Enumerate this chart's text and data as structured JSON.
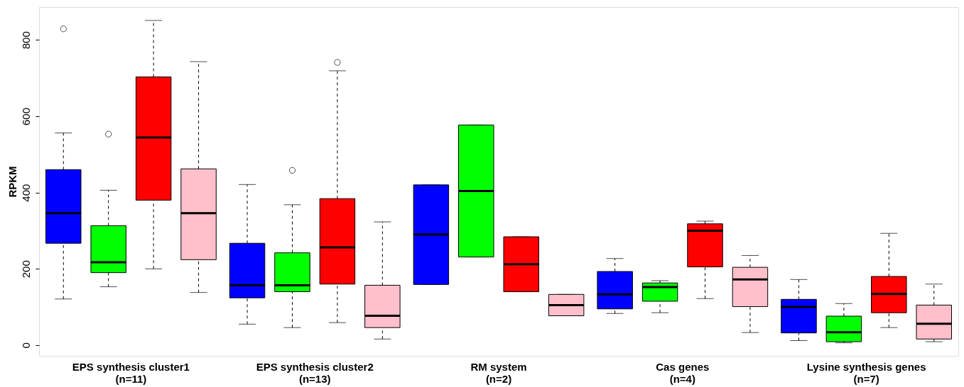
{
  "chart_data": {
    "type": "box",
    "ylabel": "RPKM",
    "ylim": [
      -28,
      886
    ],
    "yticks": [
      0,
      200,
      400,
      600,
      800
    ],
    "grid": false,
    "categories": [
      "EPS synthesis cluster1\n(n=11)",
      "EPS synthesis cluster2\n(n=13)",
      "RM system\n(n=2)",
      "Cas genes\n(n=4)",
      "Lysine synthesis genes\n(n=7)"
    ],
    "series": [
      {
        "color": "#0000ff",
        "boxes": [
          {
            "low": 121,
            "q1": 267,
            "median": 346,
            "q3": 460,
            "high": 556,
            "outliers": [
              829
            ]
          },
          {
            "low": 55,
            "q1": 124,
            "median": 157,
            "q3": 267,
            "high": 421
          },
          {
            "low": 159,
            "q1": 159,
            "median": 290,
            "q3": 420,
            "high": 420
          },
          {
            "low": 83,
            "q1": 95,
            "median": 133,
            "q3": 193,
            "high": 227
          },
          {
            "low": 12,
            "q1": 32,
            "median": 100,
            "q3": 120,
            "high": 172
          }
        ]
      },
      {
        "color": "#00ff00",
        "boxes": [
          {
            "low": 153,
            "q1": 190,
            "median": 217,
            "q3": 313,
            "high": 406,
            "outliers": [
              553
            ]
          },
          {
            "low": 46,
            "q1": 140,
            "median": 157,
            "q3": 242,
            "high": 368,
            "outliers": [
              458
            ]
          },
          {
            "low": 231,
            "q1": 231,
            "median": 404,
            "q3": 577,
            "high": 577
          },
          {
            "low": 85,
            "q1": 115,
            "median": 152,
            "q3": 163,
            "high": 169
          },
          {
            "low": 6,
            "q1": 9,
            "median": 34,
            "q3": 76,
            "high": 109
          }
        ]
      },
      {
        "color": "#ff0000",
        "boxes": [
          {
            "low": 200,
            "q1": 380,
            "median": 544,
            "q3": 703,
            "high": 851
          },
          {
            "low": 59,
            "q1": 160,
            "median": 256,
            "q3": 384,
            "high": 719,
            "outliers": [
              741
            ]
          },
          {
            "low": 140,
            "q1": 140,
            "median": 212,
            "q3": 284,
            "high": 284
          },
          {
            "low": 122,
            "q1": 205,
            "median": 300,
            "q3": 318,
            "high": 325
          },
          {
            "low": 46,
            "q1": 85,
            "median": 134,
            "q3": 180,
            "high": 293
          }
        ]
      },
      {
        "color": "#ffc0cb",
        "boxes": [
          {
            "low": 138,
            "q1": 224,
            "median": 346,
            "q3": 462,
            "high": 743
          },
          {
            "low": 16,
            "q1": 46,
            "median": 77,
            "q3": 157,
            "high": 323
          },
          {
            "low": 77,
            "q1": 77,
            "median": 105,
            "q3": 133,
            "high": 133
          },
          {
            "low": 33,
            "q1": 101,
            "median": 172,
            "q3": 204,
            "high": 235
          },
          {
            "low": 9,
            "q1": 16,
            "median": 56,
            "q3": 105,
            "high": 160
          }
        ]
      }
    ]
  }
}
